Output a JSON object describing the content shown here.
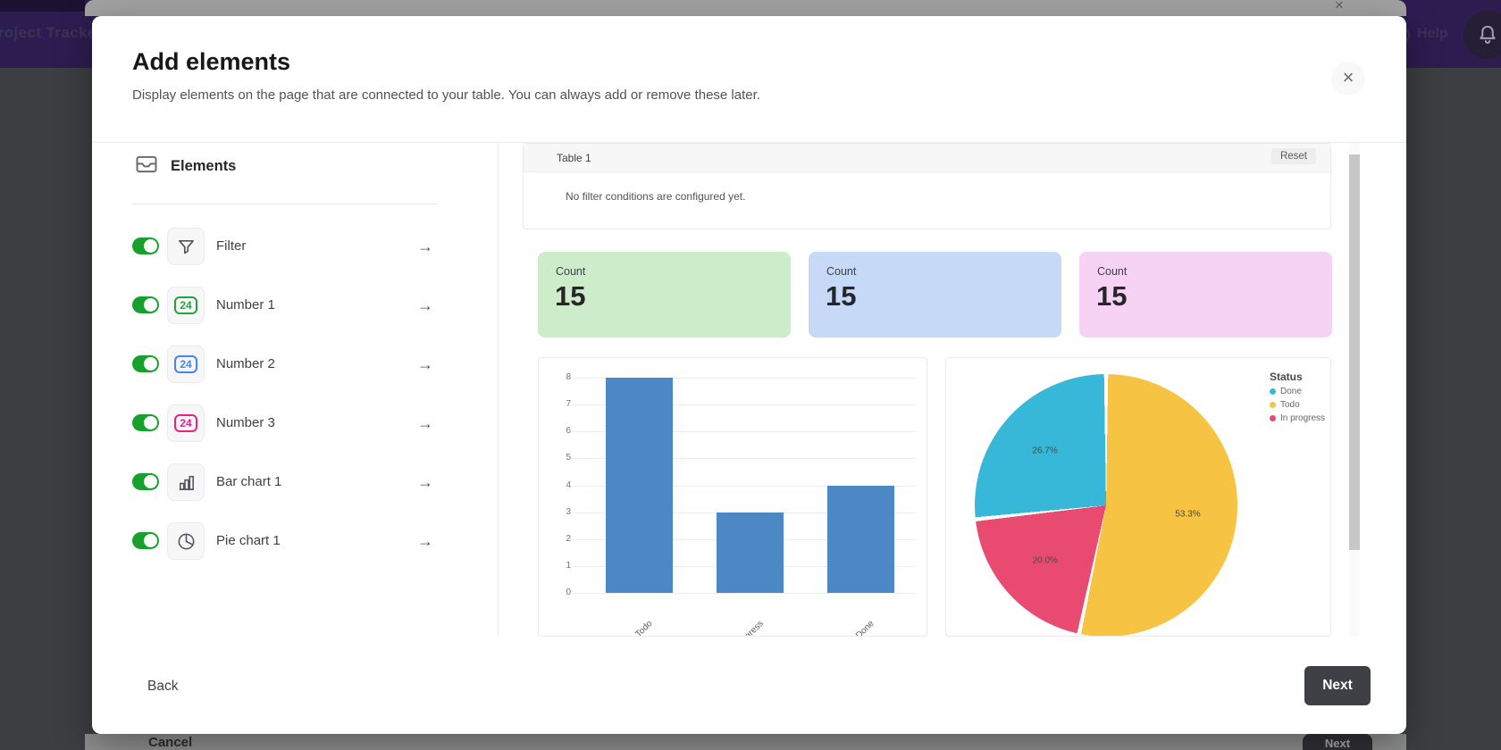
{
  "icons": {
    "close": "×",
    "arrow_right": "→",
    "behind_close": "×",
    "help_glyph": "?"
  },
  "backdrop": {
    "app_title": "Project Tracker",
    "help_label": "Help",
    "behind_dialog": {
      "cancel_label": "Cancel",
      "next_label": "Next"
    }
  },
  "modal": {
    "title": "Add elements",
    "subtitle": "Display elements on the page that are connected to your table. You can always add or remove these later.",
    "footer": {
      "back_label": "Back",
      "next_label": "Next"
    }
  },
  "sidebar": {
    "header": "Elements",
    "toggle_on_color": "#17a12c",
    "items": [
      {
        "label": "Filter",
        "icon": "filter-funnel-icon",
        "enabled": true
      },
      {
        "label": "Number 1",
        "icon": "number-badge-icon",
        "badge": "24",
        "color": "#25a244",
        "enabled": true
      },
      {
        "label": "Number 2",
        "icon": "number-badge-icon",
        "badge": "24",
        "color": "#4285f4",
        "enabled": true
      },
      {
        "label": "Number 3",
        "icon": "number-badge-icon",
        "badge": "24",
        "color": "#ea1e8c",
        "enabled": true
      },
      {
        "label": "Bar chart 1",
        "icon": "bar-chart-icon",
        "enabled": true
      },
      {
        "label": "Pie chart 1",
        "icon": "pie-chart-icon",
        "enabled": true
      }
    ]
  },
  "preview": {
    "filter_card": {
      "title": "Table 1",
      "reset_label": "Reset",
      "empty_text": "No filter conditions are configured yet."
    },
    "count_cards": [
      {
        "label": "Count",
        "value": "15",
        "bg": "#cdecca"
      },
      {
        "label": "Count",
        "value": "15",
        "bg": "#c6d9f6"
      },
      {
        "label": "Count",
        "value": "15",
        "bg": "#f6d3f4"
      }
    ]
  },
  "chart_data": [
    {
      "type": "bar",
      "categories": [
        "Todo",
        "In progress",
        "Done"
      ],
      "values": [
        8,
        3,
        4
      ],
      "ylim": [
        0,
        8
      ],
      "ytick_step": 1,
      "grid": true,
      "color": "#4c88c6",
      "title": "",
      "xlabel": "",
      "ylabel": ""
    },
    {
      "type": "pie",
      "legend_title": "Status",
      "legend_position": "top-right",
      "slices": [
        {
          "label": "Todo",
          "value": 53.3,
          "pct": "53.3%",
          "color": "#f6c342"
        },
        {
          "label": "In progress",
          "value": 20.0,
          "pct": "20.0%",
          "color": "#e84a70"
        },
        {
          "label": "Done",
          "value": 26.7,
          "pct": "26.7%",
          "color": "#38b8d8"
        }
      ],
      "legend": [
        {
          "label": "Done",
          "color": "#38b8d8"
        },
        {
          "label": "Todo",
          "color": "#f6c342"
        },
        {
          "label": "In progress",
          "color": "#e84a70"
        }
      ]
    }
  ]
}
